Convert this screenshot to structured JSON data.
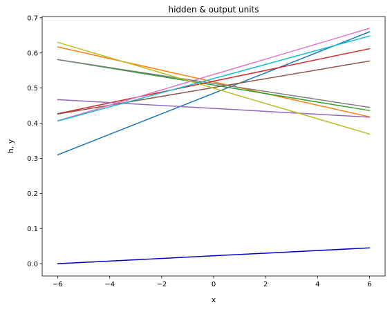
{
  "chart_data": {
    "type": "line",
    "title": "hidden & output units",
    "xlabel": "x",
    "ylabel": "h, y",
    "xlim": [
      -6.6,
      6.6
    ],
    "ylim": [
      -0.035,
      0.7035
    ],
    "xticks": [
      {
        "value": -6,
        "label": "−6"
      },
      {
        "value": -4,
        "label": "−4"
      },
      {
        "value": -2,
        "label": "−2"
      },
      {
        "value": 0,
        "label": "0"
      },
      {
        "value": 2,
        "label": "2"
      },
      {
        "value": 4,
        "label": "4"
      },
      {
        "value": 6,
        "label": "6"
      }
    ],
    "yticks": [
      {
        "value": 0.0,
        "label": "0.0"
      },
      {
        "value": 0.1,
        "label": "0.1"
      },
      {
        "value": 0.2,
        "label": "0.2"
      },
      {
        "value": 0.3,
        "label": "0.3"
      },
      {
        "value": 0.4,
        "label": "0.4"
      },
      {
        "value": 0.5,
        "label": "0.5"
      },
      {
        "value": 0.6,
        "label": "0.6"
      },
      {
        "value": 0.7,
        "label": "0.7"
      }
    ],
    "grid": false,
    "x": [
      -6,
      6
    ],
    "series": [
      {
        "color": "#1f77b4",
        "values": [
          0.31,
          0.66
        ]
      },
      {
        "color": "#ff7f0e",
        "values": [
          0.617,
          0.418
        ]
      },
      {
        "color": "#2ca02c",
        "values": [
          0.581,
          0.436
        ]
      },
      {
        "color": "#d62728",
        "values": [
          0.427,
          0.612
        ]
      },
      {
        "color": "#9467bd",
        "values": [
          0.467,
          0.417
        ]
      },
      {
        "color": "#8c564b",
        "values": [
          0.426,
          0.577
        ]
      },
      {
        "color": "#e377c2",
        "values": [
          0.407,
          0.67
        ]
      },
      {
        "color": "#7f7f7f",
        "values": [
          0.581,
          0.445
        ]
      },
      {
        "color": "#bcbd22",
        "values": [
          0.63,
          0.369
        ]
      },
      {
        "color": "#17becf",
        "values": [
          0.406,
          0.648
        ]
      },
      {
        "color": "#0000cd",
        "values": [
          0.0,
          0.045
        ]
      }
    ]
  }
}
